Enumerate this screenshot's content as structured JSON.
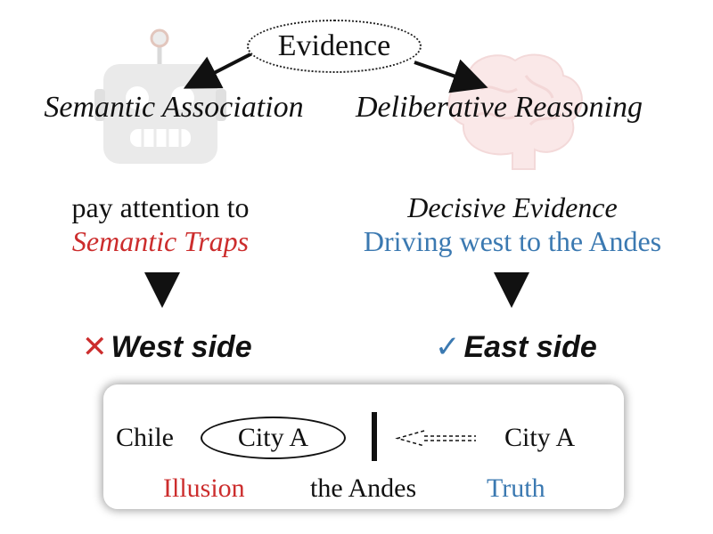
{
  "evidence": {
    "label": "Evidence"
  },
  "left_branch": {
    "title": "Semantic Association",
    "step_line1": "pay attention to",
    "step_line2": "Semantic Traps",
    "verdict_mark": "✕",
    "verdict": "West side",
    "icon": "robot-icon"
  },
  "right_branch": {
    "title": "Deliberative Reasoning",
    "step_line1": "Decisive Evidence",
    "step_line2": "Driving west to the Andes",
    "verdict_mark": "✓",
    "verdict": "East side",
    "icon": "brain-icon"
  },
  "map": {
    "chile": "Chile",
    "city_left": "City A",
    "city_right": "City A",
    "illusion": "Illusion",
    "andes": "the Andes",
    "truth": "Truth"
  },
  "colors": {
    "trap_red": "#cc2d2d",
    "truth_blue": "#3b79b1",
    "robot_gray": "#d6d6d6",
    "brain_pink": "#f4cccc"
  }
}
